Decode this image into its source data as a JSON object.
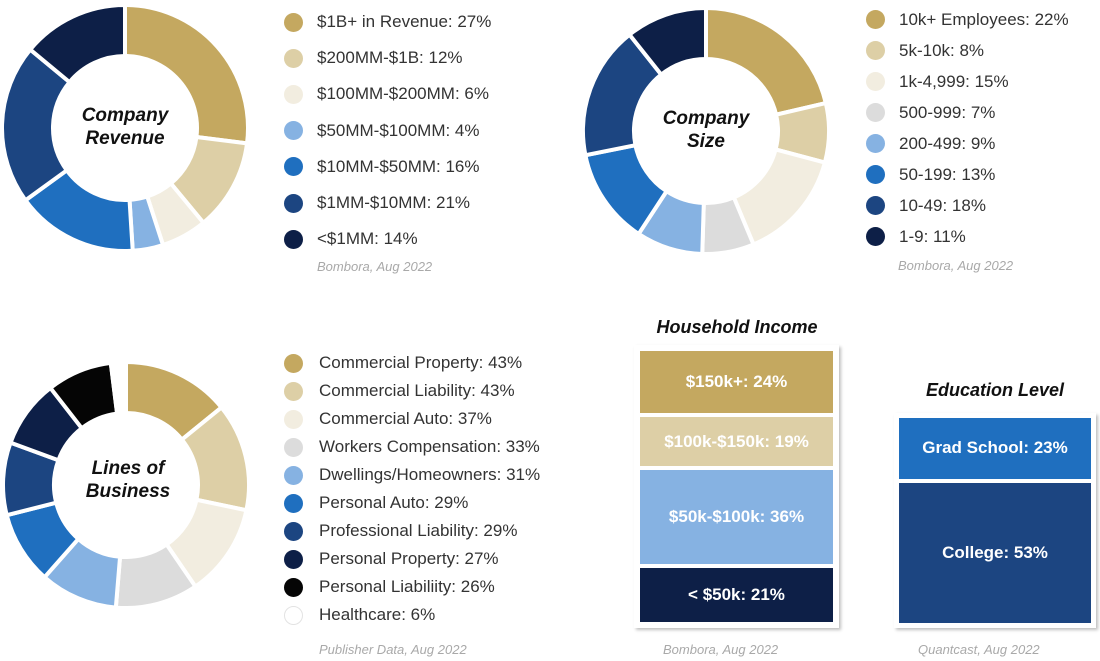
{
  "chart_data": [
    {
      "type": "pie",
      "title": "Company Revenue",
      "source": "Bombora, Aug 2022",
      "slices": [
        {
          "label": "$1B+ in Revenue: 27%",
          "value": 27,
          "color": "#c4a860"
        },
        {
          "label": "$200MM-$1B: 12%",
          "value": 12,
          "color": "#ddcfa6"
        },
        {
          "label": "$100MM-$200MM: 6%",
          "value": 6,
          "color": "#f2ede0"
        },
        {
          "label": "$50MM-$100MM: 4%",
          "value": 4,
          "color": "#86b2e2"
        },
        {
          "label": "$10MM-$50MM: 16%",
          "value": 16,
          "color": "#1f6fbf"
        },
        {
          "label": "$1MM-$10MM: 21%",
          "value": 21,
          "color": "#1c4581"
        },
        {
          "label": "<$1MM: 14%",
          "value": 14,
          "color": "#0d1f47"
        }
      ]
    },
    {
      "type": "pie",
      "title": "Company Size",
      "source": "Bombora, Aug 2022",
      "slices": [
        {
          "label": "10k+ Employees: 22%",
          "value": 22,
          "color": "#c4a860"
        },
        {
          "label": "5k-10k: 8%",
          "value": 8,
          "color": "#ddcfa6"
        },
        {
          "label": "1k-4,999: 15%",
          "value": 15,
          "color": "#f2ede0"
        },
        {
          "label": "500-999: 7%",
          "value": 7,
          "color": "#dcdcdc"
        },
        {
          "label": "200-499: 9%",
          "value": 9,
          "color": "#86b2e2"
        },
        {
          "label": "50-199: 13%",
          "value": 13,
          "color": "#1f6fbf"
        },
        {
          "label": "10-49: 18%",
          "value": 18,
          "color": "#1c4581"
        },
        {
          "label": "1-9: 11%",
          "value": 11,
          "color": "#0d1f47"
        }
      ]
    },
    {
      "type": "pie",
      "title": "Lines of Business",
      "source": "Publisher Data, Aug 2022",
      "slices": [
        {
          "label": "Commercial Property: 43%",
          "value": 43,
          "color": "#c4a860"
        },
        {
          "label": "Commercial Liability: 43%",
          "value": 43,
          "color": "#ddcfa6"
        },
        {
          "label": "Commercial Auto: 37%",
          "value": 37,
          "color": "#f2ede0"
        },
        {
          "label": "Workers Compensation: 33%",
          "value": 33,
          "color": "#dcdcdc"
        },
        {
          "label": "Dwellings/Homeowners: 31%",
          "value": 31,
          "color": "#86b2e2"
        },
        {
          "label": "Personal Auto: 29%",
          "value": 29,
          "color": "#1f6fbf"
        },
        {
          "label": "Professional Liability: 29%",
          "value": 29,
          "color": "#1c4581"
        },
        {
          "label": "Personal Property: 27%",
          "value": 27,
          "color": "#0d1f47"
        },
        {
          "label": "Personal Liabiliity: 26%",
          "value": 26,
          "color": "#050505"
        },
        {
          "label": "Healthcare: 6%",
          "value": 6,
          "color": "#ffffff"
        }
      ]
    },
    {
      "type": "bar",
      "title": "Household Income",
      "source": "Bombora, Aug 2022",
      "segments": [
        {
          "label": "$150k+: 24%",
          "value": 24,
          "color": "#c4a860"
        },
        {
          "label": "$100k-$150k: 19%",
          "value": 19,
          "color": "#ddcfa6"
        },
        {
          "label": "$50k-$100k: 36%",
          "value": 36,
          "color": "#86b2e2"
        },
        {
          "label": "< $50k: 21%",
          "value": 21,
          "color": "#0d1f47"
        }
      ]
    },
    {
      "type": "bar",
      "title": "Education Level",
      "source": "Quantcast, Aug 2022",
      "segments": [
        {
          "label": "Grad School: 23%",
          "value": 23,
          "color": "#1f6fbf"
        },
        {
          "label": "College: 53%",
          "value": 53,
          "color": "#1c4581"
        }
      ]
    }
  ],
  "donut_titles": {
    "revenue": [
      "Company",
      "Revenue"
    ],
    "size": [
      "Company",
      "Size"
    ],
    "lob": [
      "Lines of",
      "Business"
    ]
  }
}
